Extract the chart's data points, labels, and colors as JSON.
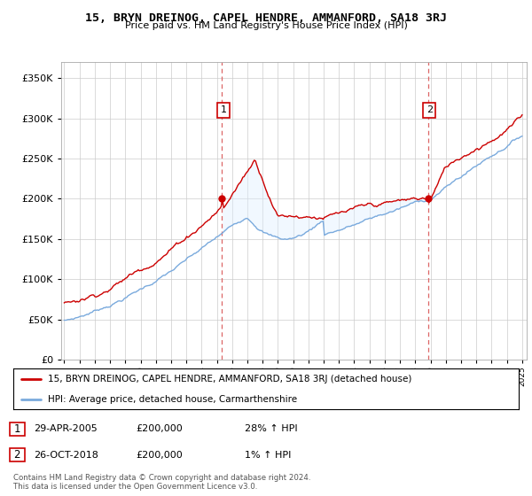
{
  "title": "15, BRYN DREINOG, CAPEL HENDRE, AMMANFORD, SA18 3RJ",
  "subtitle": "Price paid vs. HM Land Registry's House Price Index (HPI)",
  "legend_line1": "15, BRYN DREINOG, CAPEL HENDRE, AMMANFORD, SA18 3RJ (detached house)",
  "legend_line2": "HPI: Average price, detached house, Carmarthenshire",
  "annotation1_date": "29-APR-2005",
  "annotation1_price": "£200,000",
  "annotation1_hpi": "28% ↑ HPI",
  "annotation2_date": "26-OCT-2018",
  "annotation2_price": "£200,000",
  "annotation2_hpi": "1% ↑ HPI",
  "footer": "Contains HM Land Registry data © Crown copyright and database right 2024.\nThis data is licensed under the Open Government Licence v3.0.",
  "red_color": "#cc0000",
  "blue_color": "#7aaadd",
  "fill_color": "#ddeeff",
  "vline_color": "#dd6666",
  "annotation_box_color": "#cc0000",
  "background_color": "#ffffff",
  "grid_color": "#cccccc",
  "ylim": [
    0,
    370000
  ],
  "yticks": [
    0,
    50000,
    100000,
    150000,
    200000,
    250000,
    300000,
    350000
  ],
  "purchase1_year": 2005.33,
  "purchase2_year": 2018.83,
  "purchase1_price": 200000,
  "purchase2_price": 200000
}
